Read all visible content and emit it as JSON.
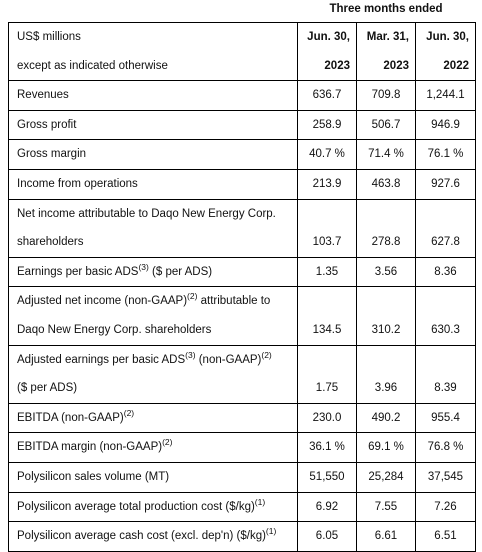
{
  "heading": "Three months ended",
  "table": {
    "header": {
      "label": [
        "US$ millions",
        "except as indicated otherwise"
      ],
      "columns": [
        [
          "Jun. 30,",
          "2023"
        ],
        [
          "Mar. 31,",
          "2023"
        ],
        [
          "Jun. 30,",
          "2022"
        ]
      ]
    },
    "rows": [
      {
        "label": [
          [
            {
              "text": "Revenues"
            }
          ]
        ],
        "values": [
          "636.7",
          "709.8",
          "1,244.1"
        ]
      },
      {
        "label": [
          [
            {
              "text": "Gross profit"
            }
          ]
        ],
        "values": [
          "258.9",
          "506.7",
          "946.9"
        ]
      },
      {
        "label": [
          [
            {
              "text": "Gross margin"
            }
          ]
        ],
        "values": [
          "40.7 %",
          "71.4 %",
          "76.1 %"
        ]
      },
      {
        "label": [
          [
            {
              "text": "Income from operations"
            }
          ]
        ],
        "values": [
          "213.9",
          "463.8",
          "927.6"
        ]
      },
      {
        "label": [
          [
            {
              "text": "Net income attributable to Daqo New Energy Corp."
            }
          ],
          [
            {
              "text": "shareholders"
            }
          ]
        ],
        "values": [
          "103.7",
          "278.8",
          "627.8"
        ]
      },
      {
        "label": [
          [
            {
              "text": "Earnings per basic ADS"
            },
            {
              "sup": "(3)"
            },
            {
              "text": " ($ per ADS)"
            }
          ]
        ],
        "values": [
          "1.35",
          "3.56",
          "8.36"
        ]
      },
      {
        "label": [
          [
            {
              "text": "Adjusted net income (non-GAAP)"
            },
            {
              "sup": "(2)"
            },
            {
              "text": " attributable to"
            }
          ],
          [
            {
              "text": "Daqo New Energy Corp. shareholders"
            }
          ]
        ],
        "values": [
          "134.5",
          "310.2",
          "630.3"
        ]
      },
      {
        "label": [
          [
            {
              "text": "Adjusted earnings per basic ADS"
            },
            {
              "sup": "(3)"
            },
            {
              "text": " (non-GAAP)"
            },
            {
              "sup": "(2)"
            }
          ],
          [
            {
              "text": "($ per ADS)"
            }
          ]
        ],
        "values": [
          "1.75",
          "3.96",
          "8.39"
        ]
      },
      {
        "label": [
          [
            {
              "text": "EBITDA (non-GAAP)"
            },
            {
              "sup": "(2)"
            }
          ]
        ],
        "values": [
          "230.0",
          "490.2",
          "955.4"
        ]
      },
      {
        "label": [
          [
            {
              "text": "EBITDA margin (non-GAAP)"
            },
            {
              "sup": "(2)"
            }
          ]
        ],
        "values": [
          "36.1 %",
          "69.1 %",
          "76.8 %"
        ]
      },
      {
        "label": [
          [
            {
              "text": "Polysilicon sales volume (MT)"
            }
          ]
        ],
        "values": [
          "51,550",
          "25,284",
          "37,545"
        ]
      },
      {
        "label": [
          [
            {
              "text": "Polysilicon average total production cost ($/kg)"
            },
            {
              "sup": "(1)"
            }
          ]
        ],
        "values": [
          "6.92",
          "7.55",
          "7.26"
        ]
      },
      {
        "label": [
          [
            {
              "text": "Polysilicon average cash cost (excl. dep'n) ($/kg)"
            },
            {
              "sup": "(1)"
            }
          ]
        ],
        "values": [
          "6.05",
          "6.61",
          "6.51"
        ]
      }
    ]
  }
}
